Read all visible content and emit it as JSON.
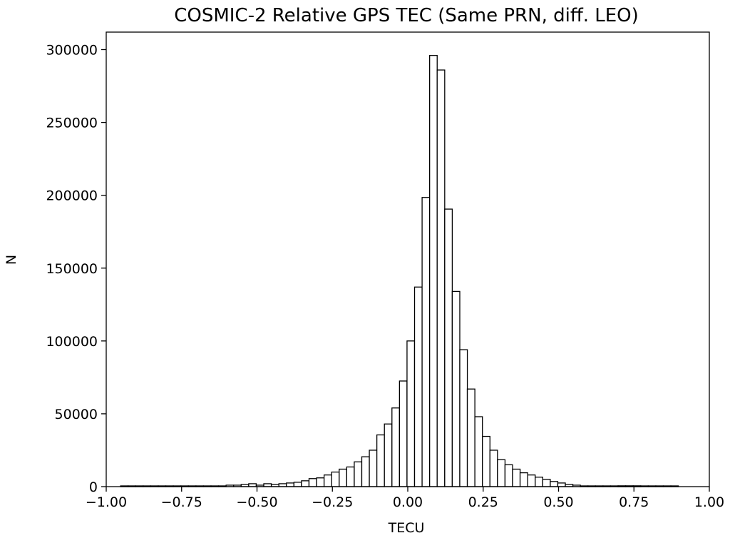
{
  "chart_data": {
    "type": "bar",
    "title": "COSMIC-2 Relative GPS TEC (Same PRN, diff. LEO)",
    "xlabel": "TECU",
    "ylabel": "N",
    "xlim": [
      -1.0,
      1.0
    ],
    "ylim": [
      0,
      312000
    ],
    "grid": false,
    "legend": "none",
    "bar_fill": "#ffffff",
    "bar_edge": "#000000",
    "x_ticks": [
      -1.0,
      -0.75,
      -0.5,
      -0.25,
      0.0,
      0.25,
      0.5,
      0.75,
      1.0
    ],
    "x_tick_labels": [
      "−1.00",
      "−0.75",
      "−0.50",
      "−0.25",
      "0.00",
      "0.25",
      "0.50",
      "0.75",
      "1.00"
    ],
    "y_ticks": [
      0,
      50000,
      100000,
      150000,
      200000,
      250000,
      300000
    ],
    "y_tick_labels": [
      "0",
      "50000",
      "100000",
      "150000",
      "200000",
      "250000",
      "300000"
    ],
    "bin_width": 0.025,
    "bins": [
      {
        "x": -0.94,
        "y": 500
      },
      {
        "x": -0.915,
        "y": 500
      },
      {
        "x": -0.89,
        "y": 500
      },
      {
        "x": -0.865,
        "y": 500
      },
      {
        "x": -0.84,
        "y": 500
      },
      {
        "x": -0.815,
        "y": 500
      },
      {
        "x": -0.79,
        "y": 500
      },
      {
        "x": -0.765,
        "y": 500
      },
      {
        "x": -0.74,
        "y": 500
      },
      {
        "x": -0.715,
        "y": 500
      },
      {
        "x": -0.69,
        "y": 500
      },
      {
        "x": -0.665,
        "y": 500
      },
      {
        "x": -0.64,
        "y": 500
      },
      {
        "x": -0.615,
        "y": 500
      },
      {
        "x": -0.59,
        "y": 1000
      },
      {
        "x": -0.565,
        "y": 1000
      },
      {
        "x": -0.54,
        "y": 1500
      },
      {
        "x": -0.515,
        "y": 2000
      },
      {
        "x": -0.49,
        "y": 1000
      },
      {
        "x": -0.465,
        "y": 2000
      },
      {
        "x": -0.44,
        "y": 1500
      },
      {
        "x": -0.415,
        "y": 2000
      },
      {
        "x": -0.39,
        "y": 2500
      },
      {
        "x": -0.365,
        "y": 3000
      },
      {
        "x": -0.34,
        "y": 4000
      },
      {
        "x": -0.315,
        "y": 5500
      },
      {
        "x": -0.29,
        "y": 6000
      },
      {
        "x": -0.265,
        "y": 8000
      },
      {
        "x": -0.24,
        "y": 10000
      },
      {
        "x": -0.215,
        "y": 12000
      },
      {
        "x": -0.19,
        "y": 13500
      },
      {
        "x": -0.165,
        "y": 17000
      },
      {
        "x": -0.14,
        "y": 20500
      },
      {
        "x": -0.115,
        "y": 25000
      },
      {
        "x": -0.09,
        "y": 35500
      },
      {
        "x": -0.065,
        "y": 43000
      },
      {
        "x": -0.04,
        "y": 54000
      },
      {
        "x": -0.015,
        "y": 72500
      },
      {
        "x": 0.01,
        "y": 100000
      },
      {
        "x": 0.035,
        "y": 137000
      },
      {
        "x": 0.06,
        "y": 198500
      },
      {
        "x": 0.085,
        "y": 296000
      },
      {
        "x": 0.11,
        "y": 286000
      },
      {
        "x": 0.135,
        "y": 190500
      },
      {
        "x": 0.16,
        "y": 134000
      },
      {
        "x": 0.185,
        "y": 94000
      },
      {
        "x": 0.21,
        "y": 67000
      },
      {
        "x": 0.235,
        "y": 48000
      },
      {
        "x": 0.26,
        "y": 34500
      },
      {
        "x": 0.285,
        "y": 25000
      },
      {
        "x": 0.31,
        "y": 18500
      },
      {
        "x": 0.335,
        "y": 15000
      },
      {
        "x": 0.36,
        "y": 12000
      },
      {
        "x": 0.385,
        "y": 9500
      },
      {
        "x": 0.41,
        "y": 8000
      },
      {
        "x": 0.435,
        "y": 6500
      },
      {
        "x": 0.46,
        "y": 5000
      },
      {
        "x": 0.485,
        "y": 3500
      },
      {
        "x": 0.51,
        "y": 2500
      },
      {
        "x": 0.535,
        "y": 1500
      },
      {
        "x": 0.56,
        "y": 1000
      },
      {
        "x": 0.585,
        "y": 500
      },
      {
        "x": 0.61,
        "y": 500
      },
      {
        "x": 0.635,
        "y": 500
      },
      {
        "x": 0.66,
        "y": 500
      },
      {
        "x": 0.685,
        "y": 500
      },
      {
        "x": 0.71,
        "y": 500
      },
      {
        "x": 0.735,
        "y": 500
      },
      {
        "x": 0.76,
        "y": 500
      },
      {
        "x": 0.785,
        "y": 500
      },
      {
        "x": 0.81,
        "y": 500
      },
      {
        "x": 0.835,
        "y": 500
      },
      {
        "x": 0.86,
        "y": 500
      },
      {
        "x": 0.885,
        "y": 500
      },
      {
        "x": 0.71,
        "y": 500
      },
      {
        "x": 0.735,
        "y": 500
      },
      {
        "x": 0.76,
        "y": 500
      }
    ]
  }
}
